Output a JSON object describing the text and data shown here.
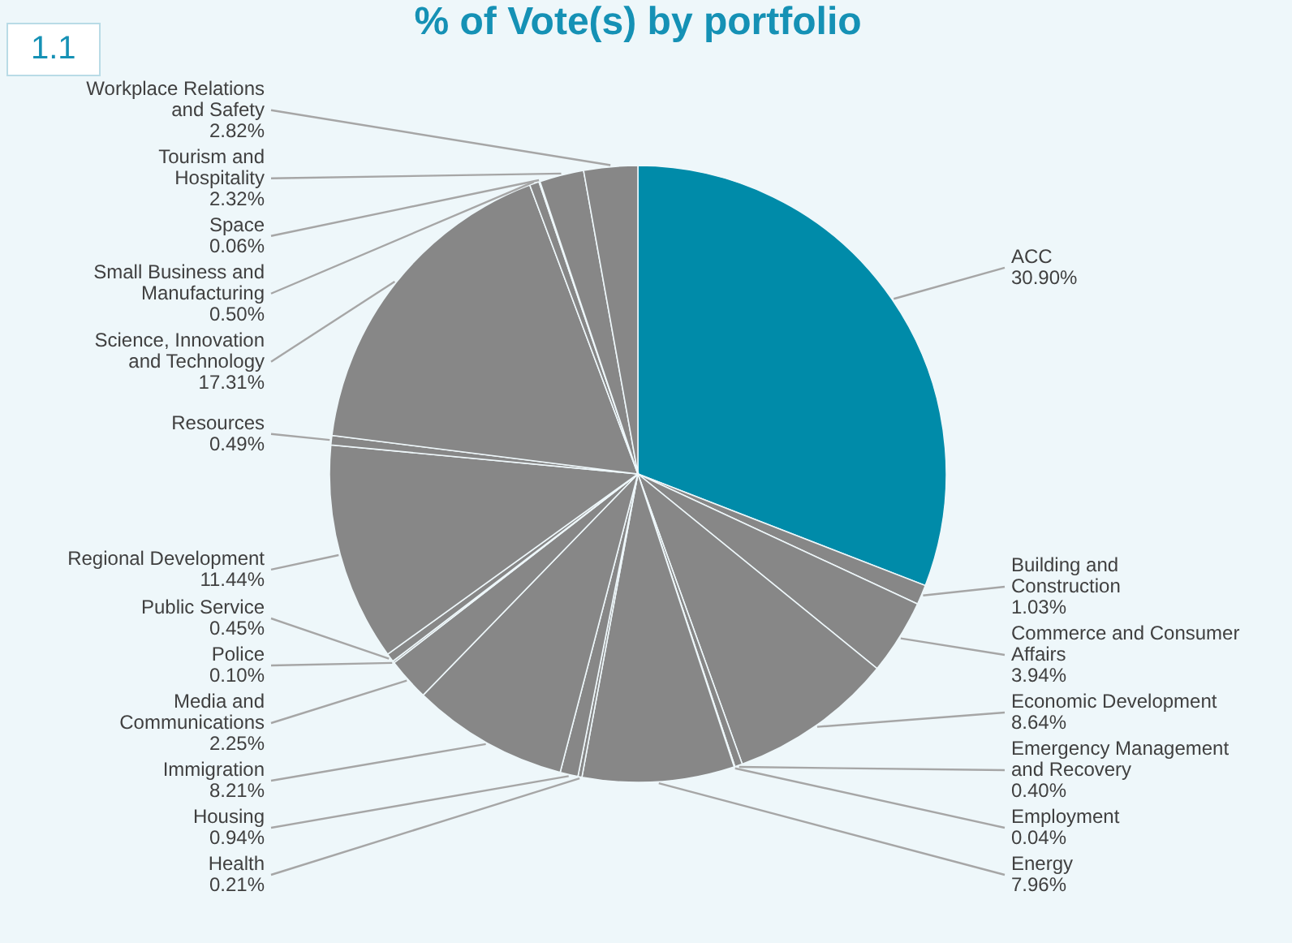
{
  "chart_data": {
    "type": "pie",
    "title": "% of Vote(s) by portfolio",
    "annotations": [
      "1.1"
    ],
    "categories": [
      "ACC",
      "Building and Construction",
      "Commerce and Consumer Affairs",
      "Economic Development",
      "Emergency Management and Recovery",
      "Employment",
      "Energy",
      "Health",
      "Housing",
      "Immigration",
      "Media and Communications",
      "Police",
      "Public Service",
      "Regional Development",
      "Resources",
      "Science, Innovation and Technology",
      "Small Business and Manufacturing",
      "Space",
      "Tourism and Hospitality",
      "Workplace Relations and Safety"
    ],
    "values": [
      30.9,
      1.03,
      3.94,
      8.64,
      0.4,
      0.04,
      7.96,
      0.21,
      0.94,
      8.21,
      2.25,
      0.1,
      0.45,
      11.44,
      0.49,
      17.31,
      0.5,
      0.06,
      2.32,
      2.82
    ],
    "value_labels": [
      "30.90%",
      "1.03%",
      "3.94%",
      "8.64%",
      "0.40%",
      "0.04%",
      "7.96%",
      "0.21%",
      "0.94%",
      "8.21%",
      "2.25%",
      "0.10%",
      "0.45%",
      "11.44%",
      "0.49%",
      "17.31%",
      "0.50%",
      "0.06%",
      "2.32%",
      "2.82%"
    ],
    "colors": [
      "#008ba9",
      "#878787",
      "#878787",
      "#878787",
      "#878787",
      "#878787",
      "#878787",
      "#878787",
      "#878787",
      "#878787",
      "#878787",
      "#878787",
      "#878787",
      "#878787",
      "#878787",
      "#878787",
      "#878787",
      "#878787",
      "#878787",
      "#878787"
    ]
  }
}
